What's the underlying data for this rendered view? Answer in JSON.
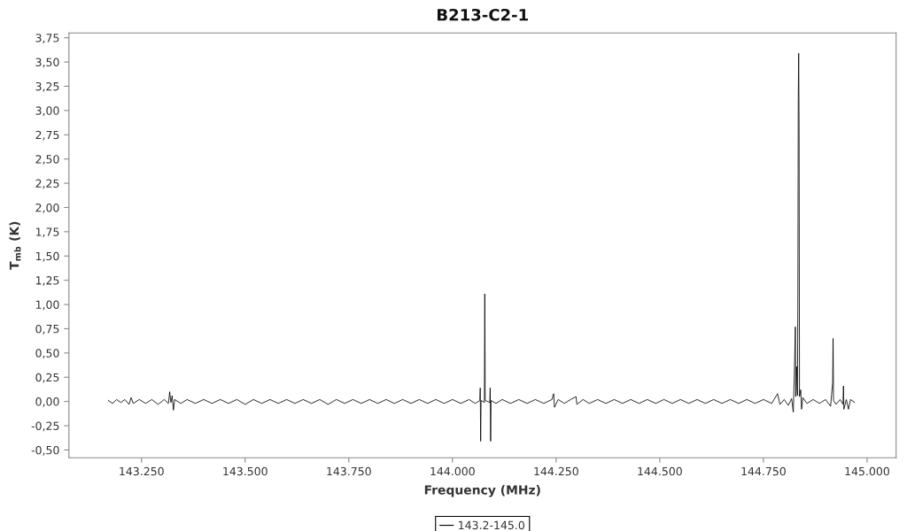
{
  "chart_data": {
    "type": "line",
    "title": "B213-C2-1",
    "xlabel": "Frequency (MHz)",
    "ylabel": "T$_{mb}$ (K)",
    "xlim": [
      143075,
      145070
    ],
    "ylim": [
      -0.58,
      3.8
    ],
    "xticks": [
      {
        "value": 143250,
        "label": "143.250"
      },
      {
        "value": 143500,
        "label": "143.500"
      },
      {
        "value": 143750,
        "label": "143.750"
      },
      {
        "value": 144000,
        "label": "144.000"
      },
      {
        "value": 144250,
        "label": "144.250"
      },
      {
        "value": 144500,
        "label": "144.500"
      },
      {
        "value": 144750,
        "label": "144.750"
      },
      {
        "value": 145000,
        "label": "145.000"
      }
    ],
    "yticks": [
      {
        "value": -0.5,
        "label": "-0,50"
      },
      {
        "value": -0.25,
        "label": "-0,25"
      },
      {
        "value": 0.0,
        "label": "0,00"
      },
      {
        "value": 0.25,
        "label": "0,25"
      },
      {
        "value": 0.5,
        "label": "0,50"
      },
      {
        "value": 0.75,
        "label": "0,75"
      },
      {
        "value": 1.0,
        "label": "1,00"
      },
      {
        "value": 1.25,
        "label": "1,25"
      },
      {
        "value": 1.5,
        "label": "1,50"
      },
      {
        "value": 1.75,
        "label": "1,75"
      },
      {
        "value": 2.0,
        "label": "2,00"
      },
      {
        "value": 2.25,
        "label": "2,25"
      },
      {
        "value": 2.5,
        "label": "2,50"
      },
      {
        "value": 2.75,
        "label": "2,75"
      },
      {
        "value": 3.0,
        "label": "3,00"
      },
      {
        "value": 3.25,
        "label": "3,25"
      },
      {
        "value": 3.5,
        "label": "3,50"
      },
      {
        "value": 3.75,
        "label": "3,75"
      }
    ],
    "grid": false,
    "legend": "bottom",
    "marker": "none",
    "line_style": "solid",
    "series": [
      {
        "name": "143.2-145.0",
        "color": "#000000",
        "x": [
          143170,
          143180,
          143190,
          143200,
          143210,
          143220,
          143225,
          143230,
          143245,
          143260,
          143275,
          143290,
          143305,
          143315,
          143318,
          143321,
          143324,
          143327,
          143330,
          143345,
          143360,
          143380,
          143400,
          143420,
          143440,
          143460,
          143480,
          143500,
          143520,
          143540,
          143560,
          143580,
          143600,
          143620,
          143640,
          143660,
          143680,
          143700,
          143720,
          143740,
          143760,
          143780,
          143800,
          143820,
          143840,
          143860,
          143880,
          143900,
          143920,
          143940,
          143960,
          143980,
          144000,
          144020,
          144040,
          144055,
          144066,
          144067,
          144068,
          144069,
          144077,
          144078,
          144079,
          144090,
          144091,
          144092,
          144093,
          144105,
          144120,
          144140,
          144160,
          144180,
          144200,
          144220,
          144240,
          144244,
          144246,
          144255,
          144270,
          144285,
          144298,
          144300,
          144315,
          144330,
          144350,
          144370,
          144390,
          144410,
          144430,
          144450,
          144470,
          144490,
          144510,
          144530,
          144550,
          144570,
          144590,
          144610,
          144630,
          144650,
          144670,
          144690,
          144710,
          144730,
          144750,
          144770,
          144784,
          144790,
          144800,
          144810,
          144818,
          144822,
          144825,
          144827,
          144828,
          144830,
          144832,
          144833,
          144834,
          144835,
          144836,
          144837,
          144840,
          144842,
          144845,
          144855,
          144870,
          144885,
          144900,
          144912,
          144917,
          144918,
          144919,
          144925,
          144935,
          144942,
          144943,
          144944,
          144950,
          144955,
          144960,
          144970
        ],
        "values": [
          0.01,
          -0.02,
          0.02,
          -0.01,
          0.02,
          -0.03,
          0.04,
          -0.02,
          0.02,
          -0.02,
          0.02,
          -0.03,
          0.02,
          -0.02,
          0.1,
          -0.01,
          0.06,
          -0.09,
          0.02,
          -0.02,
          0.02,
          -0.02,
          0.02,
          -0.02,
          0.02,
          -0.02,
          0.02,
          -0.03,
          0.02,
          -0.02,
          0.02,
          -0.02,
          0.02,
          -0.02,
          0.02,
          -0.02,
          0.02,
          -0.03,
          0.02,
          -0.02,
          0.02,
          -0.02,
          0.02,
          -0.02,
          0.02,
          -0.02,
          0.02,
          -0.02,
          0.02,
          -0.02,
          0.02,
          -0.02,
          0.02,
          -0.02,
          0.02,
          -0.02,
          0.01,
          0.14,
          -0.41,
          0.01,
          -0.01,
          1.11,
          0.01,
          -0.01,
          0.14,
          -0.41,
          0.01,
          -0.02,
          0.02,
          -0.02,
          0.02,
          -0.02,
          0.02,
          -0.02,
          0.02,
          0.08,
          -0.06,
          0.02,
          -0.02,
          0.02,
          0.05,
          -0.03,
          0.02,
          -0.02,
          0.02,
          -0.02,
          0.02,
          -0.02,
          0.02,
          -0.02,
          0.02,
          -0.02,
          0.02,
          -0.02,
          0.02,
          -0.02,
          0.02,
          -0.02,
          0.02,
          -0.02,
          0.02,
          -0.02,
          0.02,
          -0.02,
          0.02,
          -0.02,
          0.08,
          -0.03,
          0.02,
          -0.04,
          0.03,
          -0.11,
          0.36,
          0.77,
          0.05,
          0.36,
          0.06,
          0.97,
          3.14,
          3.59,
          2.85,
          0.05,
          0.12,
          -0.08,
          0.04,
          -0.02,
          0.02,
          -0.02,
          0.02,
          -0.05,
          0.2,
          0.65,
          0.01,
          -0.03,
          0.02,
          -0.03,
          0.16,
          -0.08,
          0.02,
          -0.08,
          0.02,
          -0.01
        ]
      }
    ]
  }
}
